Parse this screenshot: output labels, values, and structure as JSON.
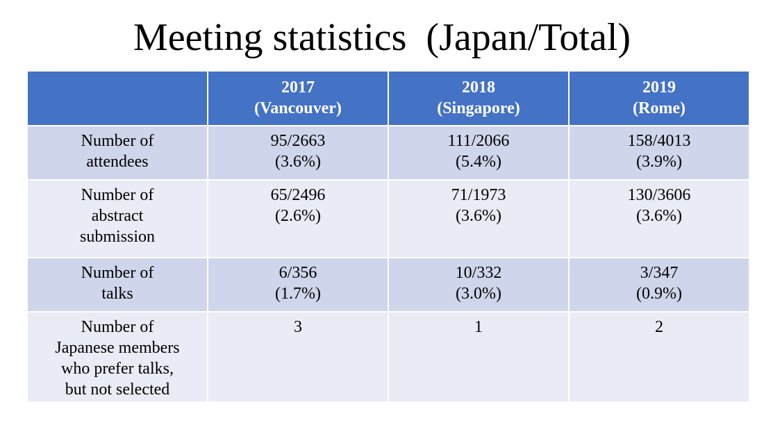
{
  "title": "Meeting statistics  (Japan/Total)",
  "table": {
    "columns": [
      {
        "year": "",
        "location": ""
      },
      {
        "year": "2017",
        "location": "(Vancouver)"
      },
      {
        "year": "2018",
        "location": "(Singapore)"
      },
      {
        "year": "2019",
        "location": "(Rome)"
      }
    ],
    "rows": [
      {
        "label": [
          "Number of",
          "attendees"
        ],
        "cells": [
          [
            "95/2663",
            "(3.6%)"
          ],
          [
            "111/2066",
            "(5.4%)"
          ],
          [
            "158/4013",
            "(3.9%)"
          ]
        ]
      },
      {
        "label": [
          "Number of",
          "abstract",
          "submission"
        ],
        "cells": [
          [
            "65/2496",
            "(2.6%)"
          ],
          [
            "71/1973",
            "(3.6%)"
          ],
          [
            "130/3606",
            "(3.6%)"
          ]
        ]
      },
      {
        "label": [
          "Number of",
          "talks"
        ],
        "cells": [
          [
            "6/356",
            "(1.7%)"
          ],
          [
            "10/332",
            "(3.0%)"
          ],
          [
            "3/347",
            "(0.9%)"
          ]
        ]
      },
      {
        "label": [
          "Number of",
          "Japanese members",
          "who prefer talks,",
          "but not selected"
        ],
        "cells": [
          [
            "3"
          ],
          [
            "1"
          ],
          [
            "2"
          ]
        ]
      }
    ]
  },
  "colors": {
    "header_bg": "#4472c4",
    "row_odd_bg": "#cfd5ea",
    "row_even_bg": "#e9ebf5",
    "header_text": "#ffffff",
    "body_text": "#000000"
  }
}
